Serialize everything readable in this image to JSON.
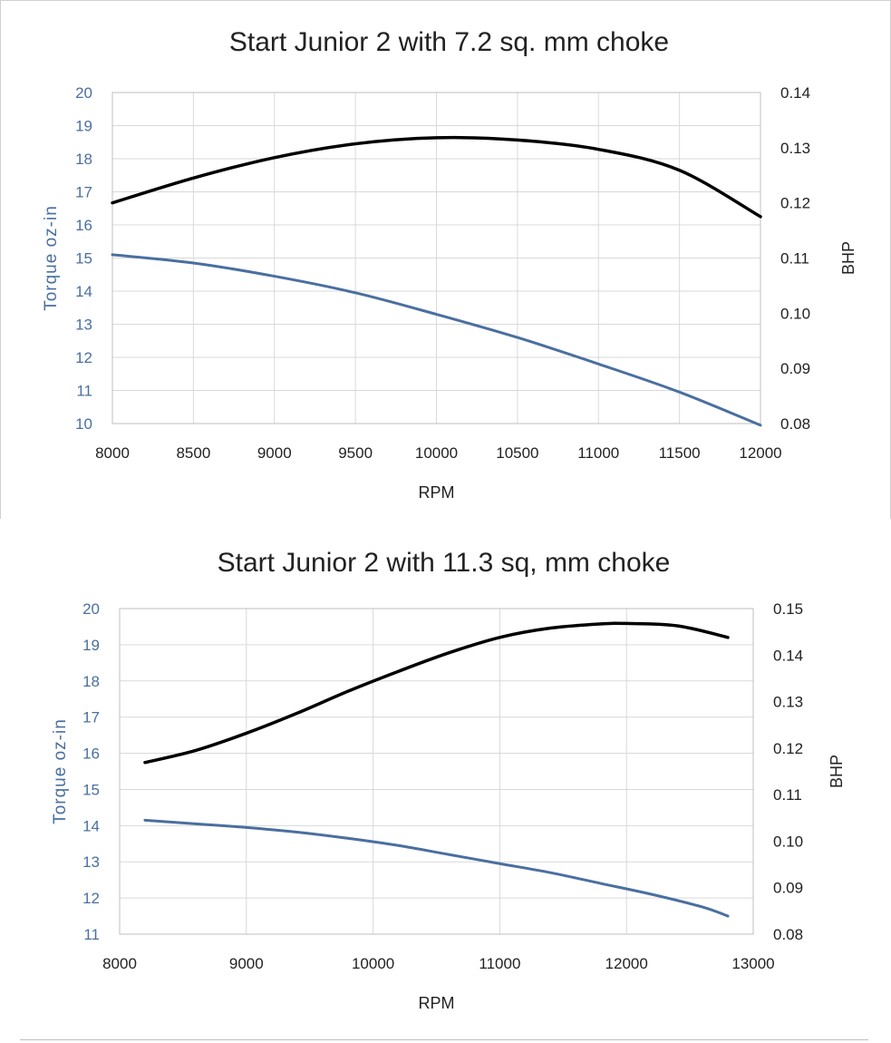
{
  "chart_data": [
    {
      "type": "line",
      "title": "Start Junior 2 with 7.2 sq. mm choke",
      "xlabel": "RPM",
      "ylabel_left": "Torque oz-in",
      "ylabel_right": "BHP",
      "xlim": [
        8000,
        12000
      ],
      "ylim_left": [
        10,
        20
      ],
      "ylim_right": [
        0.08,
        0.14
      ],
      "x_ticks": [
        "8000",
        "8500",
        "9000",
        "9500",
        "10000",
        "10500",
        "11000",
        "11500",
        "12000"
      ],
      "y_left_ticks": [
        "10",
        "11",
        "12",
        "13",
        "14",
        "15",
        "16",
        "17",
        "18",
        "19",
        "20"
      ],
      "y_right_ticks": [
        "0.08",
        "0.09",
        "0.10",
        "0.11",
        "0.12",
        "0.13",
        "0.14"
      ],
      "grid": true,
      "series": [
        {
          "name": "Torque oz-in",
          "axis": "left",
          "color": "#4a6fa0",
          "x": [
            8000,
            8500,
            9000,
            9500,
            10000,
            10500,
            11000,
            11500,
            12000
          ],
          "y": [
            15.1,
            14.85,
            14.45,
            13.95,
            13.3,
            12.6,
            11.8,
            10.95,
            9.95
          ]
        },
        {
          "name": "BHP",
          "axis": "right",
          "color": "#000000",
          "x": [
            8000,
            8500,
            9000,
            9500,
            10000,
            10500,
            11000,
            11500,
            12000
          ],
          "y": [
            0.12,
            0.1245,
            0.1282,
            0.1307,
            0.1318,
            0.1314,
            0.1297,
            0.1259,
            0.1175
          ]
        }
      ]
    },
    {
      "type": "line",
      "title": "Start  Junior 2 with 11.3 sq, mm choke",
      "xlabel": "RPM",
      "ylabel_left": "Torque oz-in",
      "ylabel_right": "BHP",
      "xlim": [
        8000,
        13000
      ],
      "ylim_left": [
        11,
        20
      ],
      "ylim_right": [
        0.08,
        0.15
      ],
      "x_ticks": [
        "8000",
        "9000",
        "10000",
        "11000",
        "12000",
        "13000"
      ],
      "y_left_ticks": [
        "11",
        "12",
        "13",
        "14",
        "15",
        "16",
        "17",
        "18",
        "19",
        "20"
      ],
      "y_right_ticks": [
        "0.08",
        "0.09",
        "0.10",
        "0.11",
        "0.12",
        "0.13",
        "0.14",
        "0.15"
      ],
      "grid": true,
      "series": [
        {
          "name": "Torque oz-in",
          "axis": "left",
          "color": "#4a6fa0",
          "x": [
            8200,
            8600,
            9000,
            9400,
            9800,
            10200,
            10600,
            11000,
            11400,
            11800,
            12200,
            12600,
            12800
          ],
          "y": [
            14.15,
            14.05,
            13.95,
            13.82,
            13.65,
            13.45,
            13.2,
            12.95,
            12.7,
            12.4,
            12.1,
            11.75,
            11.5
          ]
        },
        {
          "name": "BHP",
          "axis": "right",
          "color": "#000000",
          "x": [
            8200,
            8600,
            9000,
            9400,
            9800,
            10200,
            10600,
            11000,
            11400,
            11800,
            12000,
            12400,
            12800
          ],
          "y": [
            0.1169,
            0.1195,
            0.1232,
            0.1275,
            0.1322,
            0.1365,
            0.1405,
            0.1438,
            0.1458,
            0.1467,
            0.1468,
            0.1463,
            0.1438
          ]
        }
      ]
    }
  ]
}
